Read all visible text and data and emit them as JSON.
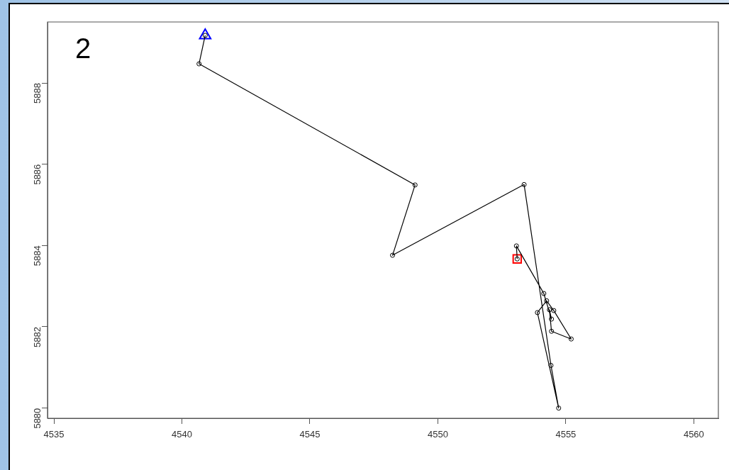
{
  "chart_data": {
    "type": "line",
    "annotations": [
      "2"
    ],
    "xlim": [
      4534.75,
      4560.96
    ],
    "ylim": [
      5879.75,
      5889.5
    ],
    "xticks": [
      4535,
      4540,
      4545,
      4550,
      4555,
      4560
    ],
    "yticks": [
      5880,
      5882,
      5884,
      5886,
      5888
    ],
    "grid": false,
    "legend": false,
    "series": [
      {
        "color": "#000000",
        "marker": "circle",
        "x": [
          4540.91,
          4540.67,
          4549.11,
          4548.23,
          4553.37,
          4554.42,
          4554.72,
          4553.89,
          4554.25,
          4554.53,
          4555.21,
          4554.44,
          4554.36,
          4554.44,
          4554.14,
          4553.07,
          4553.1
        ],
        "values": [
          5889.17,
          5888.47,
          5885.49,
          5883.76,
          5885.5,
          5881.05,
          5880.0,
          5882.35,
          5882.64,
          5882.4,
          5881.7,
          5881.89,
          5882.42,
          5882.19,
          5882.82,
          5883.99,
          5883.67
        ]
      },
      {
        "type": "scatter",
        "color": "#0000ff",
        "marker": "triangle",
        "x": [
          4540.91
        ],
        "values": [
          5889.17
        ]
      },
      {
        "type": "scatter",
        "color": "#ff0000",
        "marker": "square",
        "x": [
          4553.1
        ],
        "values": [
          5883.67
        ]
      }
    ]
  }
}
